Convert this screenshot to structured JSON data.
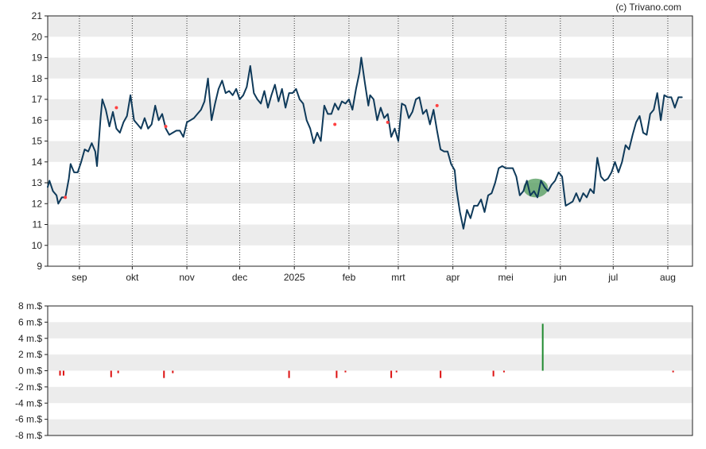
{
  "credit": "(c) Trivano.com",
  "colors": {
    "price_line": "#0f3a5a",
    "band": "#ececec",
    "frame": "#222222",
    "dividend_marker": "#ff4040",
    "highlight_fill": "#4f9a5a",
    "flow_negative": "#dd1111",
    "flow_positive": "#1f8a2f",
    "grid_dotted": "#333333"
  },
  "chart_data": [
    {
      "type": "line",
      "name": "price",
      "x_tick_labels": [
        "sep",
        "okt",
        "nov",
        "dec",
        "2025",
        "feb",
        "mrt",
        "apr",
        "mei",
        "jun",
        "jul",
        "aug"
      ],
      "x_tick_dates": [
        "2024-09-01",
        "2024-10-01",
        "2024-11-01",
        "2024-12-01",
        "2025-01-01",
        "2025-02-01",
        "2025-03-01",
        "2025-04-01",
        "2025-05-01",
        "2025-06-01",
        "2025-07-01",
        "2025-08-01"
      ],
      "x_range": [
        "2024-08-14",
        "2025-08-15"
      ],
      "ylim": [
        9,
        21
      ],
      "y_ticks": [
        9,
        10,
        11,
        12,
        13,
        14,
        15,
        16,
        17,
        18,
        19,
        20,
        21
      ],
      "grid_vertical_dotted": true,
      "alternating_bands": true,
      "series": [
        {
          "values": [
            [
              "2024-08-14",
              12.8
            ],
            [
              "2024-08-15",
              13.1
            ],
            [
              "2024-08-17",
              12.6
            ],
            [
              "2024-08-19",
              12.4
            ],
            [
              "2024-08-20",
              12.0
            ],
            [
              "2024-08-22",
              12.3
            ],
            [
              "2024-08-24",
              12.3
            ],
            [
              "2024-08-26",
              13.2
            ],
            [
              "2024-08-27",
              13.9
            ],
            [
              "2024-08-29",
              13.5
            ],
            [
              "2024-08-31",
              13.5
            ],
            [
              "2024-09-02",
              14.0
            ],
            [
              "2024-09-04",
              14.6
            ],
            [
              "2024-09-06",
              14.5
            ],
            [
              "2024-09-08",
              14.9
            ],
            [
              "2024-09-10",
              14.5
            ],
            [
              "2024-09-11",
              13.8
            ],
            [
              "2024-09-13",
              16.1
            ],
            [
              "2024-09-14",
              17.0
            ],
            [
              "2024-09-16",
              16.5
            ],
            [
              "2024-09-18",
              15.7
            ],
            [
              "2024-09-20",
              16.4
            ],
            [
              "2024-09-22",
              15.6
            ],
            [
              "2024-09-24",
              15.4
            ],
            [
              "2024-09-26",
              15.9
            ],
            [
              "2024-09-28",
              16.2
            ],
            [
              "2024-09-30",
              17.2
            ],
            [
              "2024-10-02",
              16.0
            ],
            [
              "2024-10-04",
              15.8
            ],
            [
              "2024-10-06",
              15.6
            ],
            [
              "2024-10-08",
              16.1
            ],
            [
              "2024-10-10",
              15.6
            ],
            [
              "2024-10-12",
              15.8
            ],
            [
              "2024-10-14",
              16.7
            ],
            [
              "2024-10-16",
              16.0
            ],
            [
              "2024-10-18",
              16.3
            ],
            [
              "2024-10-20",
              15.6
            ],
            [
              "2024-10-22",
              15.3
            ],
            [
              "2024-10-24",
              15.4
            ],
            [
              "2024-10-26",
              15.5
            ],
            [
              "2024-10-28",
              15.5
            ],
            [
              "2024-10-30",
              15.2
            ],
            [
              "2024-11-01",
              15.9
            ],
            [
              "2024-11-03",
              16.0
            ],
            [
              "2024-11-05",
              16.1
            ],
            [
              "2024-11-07",
              16.3
            ],
            [
              "2024-11-09",
              16.5
            ],
            [
              "2024-11-11",
              16.9
            ],
            [
              "2024-11-13",
              18.0
            ],
            [
              "2024-11-15",
              16.0
            ],
            [
              "2024-11-17",
              16.8
            ],
            [
              "2024-11-19",
              17.5
            ],
            [
              "2024-11-21",
              17.9
            ],
            [
              "2024-11-23",
              17.3
            ],
            [
              "2024-11-25",
              17.4
            ],
            [
              "2024-11-27",
              17.2
            ],
            [
              "2024-11-29",
              17.5
            ],
            [
              "2024-12-01",
              17.0
            ],
            [
              "2024-12-03",
              17.2
            ],
            [
              "2024-12-05",
              17.6
            ],
            [
              "2024-12-07",
              18.6
            ],
            [
              "2024-12-09",
              17.3
            ],
            [
              "2024-12-11",
              17.0
            ],
            [
              "2024-12-13",
              16.8
            ],
            [
              "2024-12-15",
              17.4
            ],
            [
              "2024-12-17",
              16.6
            ],
            [
              "2024-12-19",
              17.2
            ],
            [
              "2024-12-21",
              17.7
            ],
            [
              "2024-12-23",
              16.9
            ],
            [
              "2024-12-25",
              17.5
            ],
            [
              "2024-12-27",
              16.6
            ],
            [
              "2024-12-29",
              17.3
            ],
            [
              "2024-12-31",
              17.3
            ],
            [
              "2025-01-02",
              17.5
            ],
            [
              "2025-01-04",
              17.0
            ],
            [
              "2025-01-06",
              16.8
            ],
            [
              "2025-01-08",
              16.0
            ],
            [
              "2025-01-10",
              15.6
            ],
            [
              "2025-01-12",
              14.9
            ],
            [
              "2025-01-14",
              15.4
            ],
            [
              "2025-01-16",
              15.0
            ],
            [
              "2025-01-18",
              16.7
            ],
            [
              "2025-01-20",
              16.3
            ],
            [
              "2025-01-22",
              16.3
            ],
            [
              "2025-01-24",
              16.8
            ],
            [
              "2025-01-26",
              16.5
            ],
            [
              "2025-01-28",
              16.9
            ],
            [
              "2025-01-30",
              16.8
            ],
            [
              "2025-02-01",
              17.0
            ],
            [
              "2025-02-03",
              16.5
            ],
            [
              "2025-02-05",
              17.5
            ],
            [
              "2025-02-07",
              18.3
            ],
            [
              "2025-02-08",
              19.0
            ],
            [
              "2025-02-10",
              17.8
            ],
            [
              "2025-02-12",
              16.7
            ],
            [
              "2025-02-13",
              17.2
            ],
            [
              "2025-02-15",
              17.0
            ],
            [
              "2025-02-17",
              16.0
            ],
            [
              "2025-02-19",
              16.6
            ],
            [
              "2025-02-21",
              16.1
            ],
            [
              "2025-02-23",
              16.3
            ],
            [
              "2025-02-25",
              15.2
            ],
            [
              "2025-02-27",
              15.6
            ],
            [
              "2025-03-01",
              15.0
            ],
            [
              "2025-03-03",
              16.8
            ],
            [
              "2025-03-05",
              16.7
            ],
            [
              "2025-03-07",
              16.1
            ],
            [
              "2025-03-09",
              16.4
            ],
            [
              "2025-03-11",
              17.0
            ],
            [
              "2025-03-13",
              17.1
            ],
            [
              "2025-03-15",
              16.3
            ],
            [
              "2025-03-17",
              16.5
            ],
            [
              "2025-03-19",
              15.8
            ],
            [
              "2025-03-21",
              16.5
            ],
            [
              "2025-03-23",
              15.5
            ],
            [
              "2025-03-25",
              14.6
            ],
            [
              "2025-03-27",
              14.5
            ],
            [
              "2025-03-29",
              14.5
            ],
            [
              "2025-03-31",
              13.9
            ],
            [
              "2025-04-02",
              13.6
            ],
            [
              "2025-04-03",
              12.7
            ],
            [
              "2025-04-05",
              11.6
            ],
            [
              "2025-04-07",
              10.8
            ],
            [
              "2025-04-09",
              11.7
            ],
            [
              "2025-04-11",
              11.3
            ],
            [
              "2025-04-13",
              11.9
            ],
            [
              "2025-04-15",
              11.9
            ],
            [
              "2025-04-17",
              12.2
            ],
            [
              "2025-04-19",
              11.6
            ],
            [
              "2025-04-21",
              12.4
            ],
            [
              "2025-04-23",
              12.5
            ],
            [
              "2025-04-25",
              13.0
            ],
            [
              "2025-04-27",
              13.7
            ],
            [
              "2025-04-29",
              13.8
            ],
            [
              "2025-05-01",
              13.7
            ],
            [
              "2025-05-03",
              13.7
            ],
            [
              "2025-05-05",
              13.7
            ],
            [
              "2025-05-07",
              13.3
            ],
            [
              "2025-05-09",
              12.4
            ],
            [
              "2025-05-11",
              12.6
            ],
            [
              "2025-05-13",
              13.1
            ],
            [
              "2025-05-15",
              12.4
            ],
            [
              "2025-05-17",
              12.6
            ],
            [
              "2025-05-19",
              12.3
            ],
            [
              "2025-05-21",
              13.1
            ],
            [
              "2025-05-23",
              12.8
            ],
            [
              "2025-05-25",
              12.6
            ],
            [
              "2025-05-27",
              12.9
            ],
            [
              "2025-05-29",
              13.1
            ],
            [
              "2025-05-31",
              13.5
            ],
            [
              "2025-06-02",
              13.3
            ],
            [
              "2025-06-04",
              11.9
            ],
            [
              "2025-06-06",
              12.0
            ],
            [
              "2025-06-08",
              12.1
            ],
            [
              "2025-06-10",
              12.5
            ],
            [
              "2025-06-12",
              12.1
            ],
            [
              "2025-06-14",
              12.5
            ],
            [
              "2025-06-16",
              12.3
            ],
            [
              "2025-06-18",
              12.7
            ],
            [
              "2025-06-20",
              12.5
            ],
            [
              "2025-06-22",
              14.2
            ],
            [
              "2025-06-24",
              13.3
            ],
            [
              "2025-06-26",
              13.1
            ],
            [
              "2025-06-28",
              13.2
            ],
            [
              "2025-06-30",
              13.5
            ],
            [
              "2025-07-02",
              14.0
            ],
            [
              "2025-07-04",
              13.5
            ],
            [
              "2025-07-06",
              14.0
            ],
            [
              "2025-07-08",
              14.8
            ],
            [
              "2025-07-10",
              14.6
            ],
            [
              "2025-07-12",
              15.3
            ],
            [
              "2025-07-14",
              15.9
            ],
            [
              "2025-07-16",
              16.2
            ],
            [
              "2025-07-18",
              15.4
            ],
            [
              "2025-07-20",
              15.3
            ],
            [
              "2025-07-22",
              16.3
            ],
            [
              "2025-07-24",
              16.5
            ],
            [
              "2025-07-26",
              17.3
            ],
            [
              "2025-07-28",
              16.0
            ],
            [
              "2025-07-30",
              17.2
            ],
            [
              "2025-08-01",
              17.1
            ],
            [
              "2025-08-03",
              17.1
            ],
            [
              "2025-08-05",
              16.6
            ],
            [
              "2025-08-07",
              17.1
            ],
            [
              "2025-08-09",
              17.1
            ]
          ]
        }
      ],
      "markers": [
        [
          "2024-08-24",
          12.3
        ],
        [
          "2024-09-22",
          16.6
        ],
        [
          "2024-10-20",
          15.7
        ],
        [
          "2025-01-24",
          15.8
        ],
        [
          "2025-02-23",
          15.9
        ],
        [
          "2025-03-23",
          16.7
        ]
      ],
      "highlight_region": {
        "x": [
          "2025-05-11",
          "2025-05-25"
        ],
        "y": [
          12.3,
          13.2
        ]
      }
    },
    {
      "type": "bar",
      "name": "flow",
      "y_tick_labels": [
        "8 m.$",
        "6 m.$",
        "4 m.$",
        "2 m.$",
        "0 m.$",
        "-2 m.$",
        "-4 m.$",
        "-6 m.$",
        "-8 m.$"
      ],
      "y_ticks": [
        8,
        6,
        4,
        2,
        0,
        -2,
        -4,
        -6,
        -8
      ],
      "ylim": [
        -8,
        8
      ],
      "alternating_bands": true,
      "values": [
        [
          "2024-08-21",
          -0.6
        ],
        [
          "2024-08-23",
          -0.6
        ],
        [
          "2024-09-19",
          -0.8
        ],
        [
          "2024-09-23",
          -0.3
        ],
        [
          "2024-10-19",
          -0.9
        ],
        [
          "2024-10-24",
          -0.3
        ],
        [
          "2024-12-29",
          -0.9
        ],
        [
          "2025-01-25",
          -0.9
        ],
        [
          "2025-01-30",
          -0.2
        ],
        [
          "2025-02-25",
          -0.9
        ],
        [
          "2025-02-28",
          -0.2
        ],
        [
          "2025-03-25",
          -0.9
        ],
        [
          "2025-04-24",
          -0.7
        ],
        [
          "2025-04-30",
          -0.2
        ],
        [
          "2025-05-22",
          5.8
        ],
        [
          "2025-08-04",
          -0.2
        ]
      ]
    }
  ]
}
